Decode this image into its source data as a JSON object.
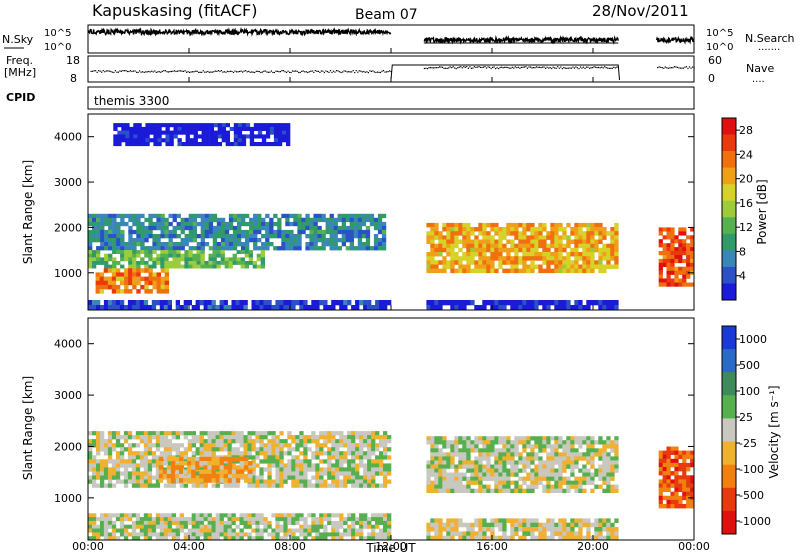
{
  "header": {
    "station": "Kapuskasing (fitACF)",
    "beam": "Beam 07",
    "date": "28/Nov/2011"
  },
  "top_panel": {
    "left_label": "N.Sky",
    "right_label": "N.Search",
    "left_ticks": [
      "10^5",
      "10^0"
    ],
    "right_ticks": [
      "10^5",
      "10^0"
    ],
    "right_dots": "......."
  },
  "freq_panel": {
    "left_label_1": "Freq.",
    "left_label_2": "[MHz]",
    "right_label": "Nave",
    "left_ticks": [
      "18",
      "8"
    ],
    "right_ticks": [
      "60",
      "0"
    ],
    "right_dots": "...."
  },
  "cpid_panel": {
    "label": "CPID",
    "program": "themis 3300"
  },
  "axes": {
    "ylabel": "Slant Range [km]",
    "yticks": [
      "1000",
      "2000",
      "3000",
      "4000"
    ],
    "xticks": [
      "00:00",
      "04:00",
      "08:00",
      "12:00",
      "16:00",
      "20:00",
      "00:00"
    ],
    "xlabel": "Time UT"
  },
  "chart_data": [
    {
      "type": "heatmap",
      "title": "",
      "xlabel": "Time UT",
      "ylabel": "Slant Range [km]",
      "x_range_hours": [
        0,
        24
      ],
      "y_range_km": [
        180,
        4500
      ],
      "colorbar": {
        "label": "Power [dB]",
        "ticks": [
          "4",
          "8",
          "12",
          "16",
          "20",
          "24",
          "28"
        ],
        "tick_values": [
          4,
          8,
          12,
          16,
          20,
          24,
          28
        ],
        "range": [
          0,
          30
        ],
        "colors": [
          "#1a1ad8",
          "#2a52c6",
          "#3a86b8",
          "#2f9a6a",
          "#56b050",
          "#9ccc3c",
          "#d6d22a",
          "#f0a018",
          "#f07010",
          "#e83a0c",
          "#e01010"
        ]
      },
      "bands": [
        {
          "x0": 0.0,
          "x1": 11.8,
          "y0": 1500,
          "y1": 2300,
          "value": 10
        },
        {
          "x0": 0.0,
          "x1": 7.0,
          "y0": 1100,
          "y1": 1500,
          "value": 14
        },
        {
          "x0": 0.3,
          "x1": 3.2,
          "y0": 550,
          "y1": 1100,
          "value": 22
        },
        {
          "x0": 0.0,
          "x1": 12.0,
          "y0": 180,
          "y1": 400,
          "value": 6
        },
        {
          "x0": 13.4,
          "x1": 21.0,
          "y0": 1000,
          "y1": 2100,
          "value": 20
        },
        {
          "x0": 13.4,
          "x1": 21.0,
          "y0": 180,
          "y1": 400,
          "value": 5
        },
        {
          "x0": 22.6,
          "x1": 24.0,
          "y0": 700,
          "y1": 2000,
          "value": 24
        },
        {
          "x0": 1.0,
          "x1": 8.0,
          "y0": 3800,
          "y1": 4300,
          "value": 4
        }
      ],
      "data_gaps_hours": [
        [
          12.0,
          13.3
        ],
        [
          21.0,
          22.5
        ]
      ]
    },
    {
      "type": "heatmap",
      "title": "",
      "xlabel": "Time UT",
      "ylabel": "Slant Range [km]",
      "x_range_hours": [
        0,
        24
      ],
      "y_range_km": [
        180,
        4500
      ],
      "colorbar": {
        "label": "Velocity [m s⁻¹]",
        "ticks": [
          "1000",
          "500",
          "100",
          "25",
          "-25",
          "-100",
          "-500",
          "-1000"
        ],
        "tick_values": [
          1000,
          500,
          100,
          25,
          -25,
          -100,
          -500,
          -1000
        ],
        "colors": [
          "#1a3ad8",
          "#2a6ac6",
          "#3e8a5a",
          "#56b050",
          "#c8c8c0",
          "#f0b030",
          "#f08010",
          "#e83a0c",
          "#e01010"
        ]
      },
      "bands": [
        {
          "x0": 0.0,
          "x1": 12.0,
          "y0": 1200,
          "y1": 2300,
          "value": 0
        },
        {
          "x0": 0.0,
          "x1": 12.0,
          "y0": 180,
          "y1": 700,
          "value": 60
        },
        {
          "x0": 2.8,
          "x1": 6.5,
          "y0": 1300,
          "y1": 1800,
          "value": -300
        },
        {
          "x0": 13.4,
          "x1": 21.0,
          "y0": 1100,
          "y1": 2200,
          "value": 0
        },
        {
          "x0": 13.4,
          "x1": 21.0,
          "y0": 180,
          "y1": 600,
          "value": -60
        },
        {
          "x0": 22.6,
          "x1": 24.0,
          "y0": 800,
          "y1": 2000,
          "value": -600
        }
      ],
      "data_gaps_hours": [
        [
          12.0,
          13.3
        ],
        [
          21.0,
          22.5
        ]
      ]
    }
  ]
}
